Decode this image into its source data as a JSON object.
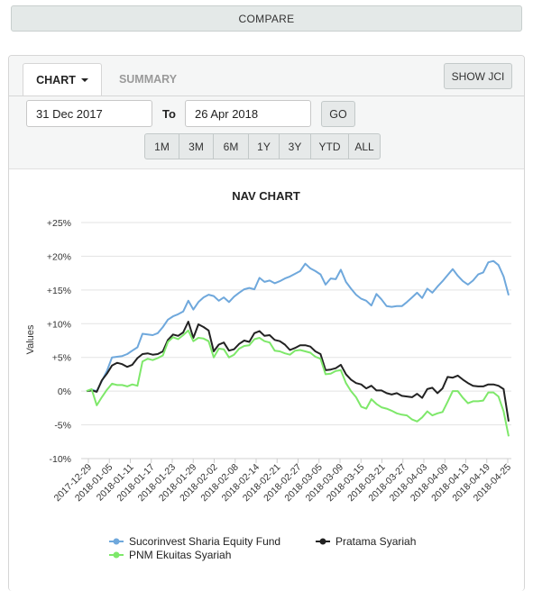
{
  "compare_label": "COMPARE",
  "tabs": {
    "chart": "CHART",
    "summary": "SUMMARY"
  },
  "show_jci_label": "SHOW JCI",
  "date_from": "31 Dec 2017",
  "to_label": "To",
  "date_to": "26 Apr 2018",
  "go_label": "GO",
  "ranges": [
    "1M",
    "3M",
    "6M",
    "1Y",
    "3Y",
    "YTD",
    "ALL"
  ],
  "chart_data": {
    "type": "line",
    "title": "NAV CHART",
    "ylabel": "Values",
    "xlabel": "",
    "ylim": [
      -10,
      25
    ],
    "ytick_labels": [
      "-10%",
      "-5%",
      "0%",
      "+5%",
      "+10%",
      "+15%",
      "+20%",
      "+25%"
    ],
    "ytick_values": [
      -10,
      -5,
      0,
      5,
      10,
      15,
      20,
      25
    ],
    "x_tick_labels": [
      "2017-12-29",
      "2018-01-05",
      "2018-01-11",
      "2018-01-17",
      "2018-01-23",
      "2018-01-29",
      "2018-02-02",
      "2018-02-08",
      "2018-02-14",
      "2018-02-21",
      "2018-02-27",
      "2018-03-05",
      "2018-03-09",
      "2018-03-15",
      "2018-03-21",
      "2018-03-27",
      "2018-04-03",
      "2018-04-09",
      "2018-04-13",
      "2018-04-19",
      "2018-04-25"
    ],
    "grid": true,
    "legend_position": "bottom",
    "series": [
      {
        "name": "Sucorinvest Sharia Equity Fund",
        "color": "#6fa8dc",
        "values": [
          0,
          0.2,
          0,
          1.5,
          3,
          5,
          5.1,
          5.2,
          5.5,
          6,
          6.5,
          8.5,
          8.4,
          8.3,
          8.6,
          9.5,
          10.6,
          11.1,
          11.4,
          11.8,
          13.4,
          12.1,
          13.2,
          13.9,
          14.3,
          14.1,
          13.4,
          13.9,
          13.2,
          14.0,
          14.6,
          15.1,
          15.3,
          15.1,
          16.8,
          16.2,
          16.4,
          16.0,
          16.3,
          16.7,
          17.0,
          17.4,
          17.8,
          18.9,
          18.2,
          17.8,
          17.3,
          15.8,
          16.7,
          16.6,
          18.0,
          16.2,
          15.2,
          14.3,
          13.7,
          13.4,
          12.7,
          14.4,
          13.6,
          12.6,
          12.5,
          12.6,
          12.6,
          13.2,
          13.9,
          14.6,
          13.8,
          15.2,
          14.6,
          15.5,
          16.3,
          17.2,
          18.1,
          17.1,
          16.3,
          15.8,
          16.4,
          17.3,
          17.6,
          19.1,
          19.3,
          18.7,
          17.0,
          14.2
        ]
      },
      {
        "name": "Pratama Syariah",
        "color": "#222222",
        "values": [
          0,
          0.1,
          -0.1,
          1.6,
          2.6,
          3.8,
          4.2,
          4.0,
          3.6,
          3.9,
          4.9,
          5.5,
          5.6,
          5.4,
          5.5,
          5.9,
          7.6,
          8.4,
          8.2,
          8.7,
          10.3,
          7.9,
          9.9,
          9.5,
          9.0,
          5.9,
          6.9,
          7.2,
          6.0,
          6.2,
          7.0,
          7.5,
          7.3,
          8.6,
          8.9,
          8.2,
          8.3,
          7.6,
          7.4,
          6.9,
          6.1,
          6.4,
          6.8,
          6.8,
          6.6,
          5.9,
          5.5,
          3.1,
          3.2,
          3.4,
          3.9,
          2.5,
          1.7,
          1.2,
          1.0,
          0.4,
          0.8,
          0.1,
          0.1,
          -0.3,
          -0.5,
          -0.3,
          -0.7,
          -0.8,
          -0.9,
          -0.4,
          -1.0,
          0.3,
          0.5,
          -0.3,
          0.4,
          2.1,
          2.0,
          2.3,
          1.7,
          1.2,
          0.8,
          0.7,
          0.7,
          1.0,
          1.0,
          0.8,
          0.3,
          -4.5
        ]
      },
      {
        "name": "PNM Ekuitas Syariah",
        "color": "#7ee86a",
        "values": [
          0,
          0.3,
          -2.1,
          -0.9,
          0.2,
          1.1,
          0.9,
          0.9,
          0.7,
          1.0,
          0.8,
          4.4,
          4.8,
          4.6,
          4.9,
          5.3,
          7.3,
          8.0,
          7.7,
          8.3,
          9.0,
          7.4,
          7.9,
          7.8,
          7.4,
          5.0,
          6.3,
          6.2,
          5.0,
          5.4,
          6.3,
          6.7,
          6.8,
          7.7,
          7.9,
          7.4,
          7.2,
          6.0,
          5.9,
          5.6,
          5.4,
          6.0,
          6.1,
          5.9,
          5.7,
          5.1,
          4.8,
          2.5,
          2.6,
          3.0,
          3.1,
          1.2,
          0.0,
          -0.9,
          -2.3,
          -2.6,
          -1.2,
          -1.9,
          -2.4,
          -2.6,
          -2.9,
          -3.3,
          -3.5,
          -3.6,
          -4.2,
          -4.5,
          -3.9,
          -3.0,
          -3.6,
          -3.3,
          -3.1,
          -1.6,
          0.0,
          0.0,
          -1.0,
          -1.8,
          -1.5,
          -1.5,
          -1.4,
          -0.2,
          -0.2,
          -0.8,
          -3.0,
          -6.7
        ]
      }
    ]
  }
}
